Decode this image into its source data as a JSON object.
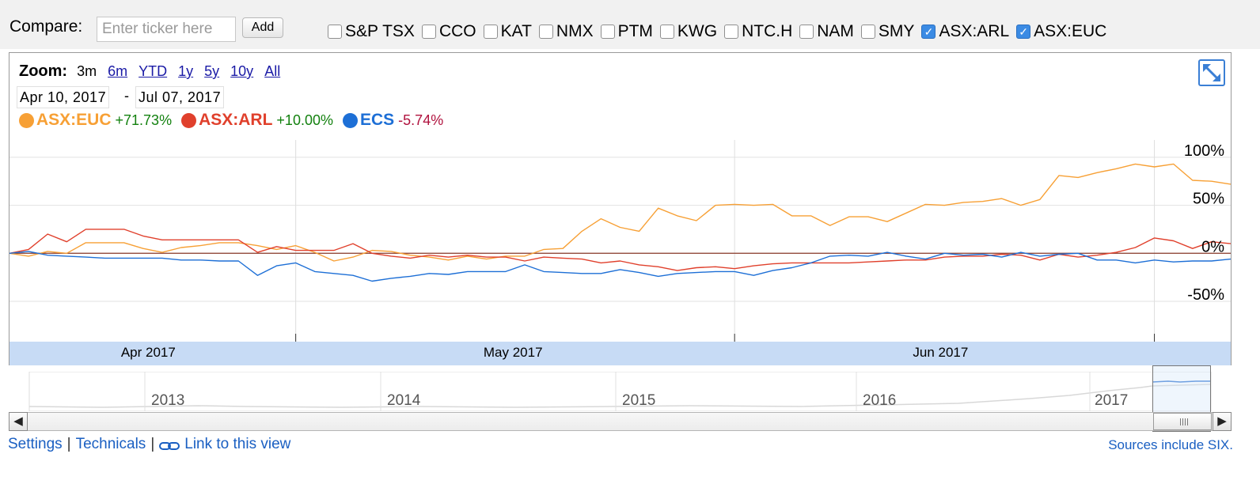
{
  "compare": {
    "label": "Compare:",
    "placeholder": "Enter ticker here",
    "add_label": "Add",
    "items": [
      {
        "label": "S&P TSX",
        "checked": false
      },
      {
        "label": "CCO",
        "checked": false
      },
      {
        "label": "KAT",
        "checked": false
      },
      {
        "label": "NMX",
        "checked": false
      },
      {
        "label": "PTM",
        "checked": false
      },
      {
        "label": "KWG",
        "checked": false
      },
      {
        "label": "NTC.H",
        "checked": false
      },
      {
        "label": "NAM",
        "checked": false
      },
      {
        "label": "SMY",
        "checked": false
      },
      {
        "label": "ASX:ARL",
        "checked": true
      },
      {
        "label": "ASX:EUC",
        "checked": true
      }
    ]
  },
  "zoom": {
    "label": "Zoom:",
    "options": [
      "3m",
      "6m",
      "YTD",
      "1y",
      "5y",
      "10y",
      "All"
    ],
    "active": "3m"
  },
  "date_range": {
    "start": "Apr 10, 2017",
    "separator": "-",
    "end": "Jul 07, 2017"
  },
  "legend": [
    {
      "name": "ASX:EUC",
      "change": "+71.73%",
      "color": "#f7a035",
      "change_color": "#13810f"
    },
    {
      "name": "ASX:ARL",
      "change": "+10.00%",
      "color": "#e0402c",
      "change_color": "#13810f"
    },
    {
      "name": "ECS",
      "change": "-5.74%",
      "color": "#1d6fd6",
      "change_color": "#b0123e"
    }
  ],
  "chart_data": {
    "type": "line",
    "x": [
      "2017-04-10",
      "2017-04-11",
      "2017-04-12",
      "2017-04-13",
      "2017-04-14",
      "2017-04-17",
      "2017-04-18",
      "2017-04-19",
      "2017-04-20",
      "2017-04-21",
      "2017-04-24",
      "2017-04-25",
      "2017-04-26",
      "2017-04-27",
      "2017-04-28",
      "2017-05-01",
      "2017-05-02",
      "2017-05-03",
      "2017-05-04",
      "2017-05-05",
      "2017-05-08",
      "2017-05-09",
      "2017-05-10",
      "2017-05-11",
      "2017-05-12",
      "2017-05-15",
      "2017-05-16",
      "2017-05-17",
      "2017-05-18",
      "2017-05-19",
      "2017-05-22",
      "2017-05-23",
      "2017-05-24",
      "2017-05-25",
      "2017-05-26",
      "2017-05-29",
      "2017-05-30",
      "2017-05-31",
      "2017-06-01",
      "2017-06-02",
      "2017-06-05",
      "2017-06-06",
      "2017-06-07",
      "2017-06-08",
      "2017-06-09",
      "2017-06-12",
      "2017-06-13",
      "2017-06-14",
      "2017-06-15",
      "2017-06-16",
      "2017-06-19",
      "2017-06-20",
      "2017-06-21",
      "2017-06-22",
      "2017-06-23",
      "2017-06-26",
      "2017-06-27",
      "2017-06-28",
      "2017-06-29",
      "2017-06-30",
      "2017-07-03",
      "2017-07-04",
      "2017-07-05",
      "2017-07-06",
      "2017-07-07"
    ],
    "series": [
      {
        "name": "ASX:EUC",
        "color": "#f7a035",
        "values": [
          0,
          -3,
          2,
          0,
          11,
          11,
          11,
          5,
          1,
          6,
          8,
          11,
          11,
          8,
          4,
          8,
          1,
          -8,
          -4,
          3,
          2,
          -2,
          -4,
          -7,
          -3,
          -6,
          -3,
          -3,
          4,
          5,
          23,
          36,
          27,
          23,
          47,
          39,
          34,
          50,
          51,
          50,
          51,
          39,
          39,
          29,
          38,
          38,
          33,
          42,
          51,
          50,
          53,
          54,
          57,
          50,
          56,
          81,
          79,
          84,
          88,
          93,
          90,
          93,
          76,
          75,
          72
        ]
      },
      {
        "name": "ASX:ARL",
        "color": "#e0402c",
        "values": [
          0,
          4,
          20,
          12,
          25,
          25,
          25,
          18,
          14,
          14,
          14,
          14,
          14,
          1,
          7,
          3,
          3,
          3,
          10,
          0,
          -3,
          -5,
          -2,
          -4,
          -2,
          -4,
          -4,
          -8,
          -4,
          -5,
          -6,
          -10,
          -8,
          -12,
          -14,
          -18,
          -15,
          -14,
          -16,
          -13,
          -11,
          -10,
          -10,
          -10,
          -10,
          -9,
          -8,
          -7,
          -7,
          -4,
          -3,
          -3,
          -1,
          -2,
          -7,
          -1,
          -4,
          -2,
          1,
          6,
          16,
          13,
          5,
          12,
          10
        ]
      },
      {
        "name": "ECS",
        "color": "#1d6fd6",
        "values": [
          0,
          2,
          -2,
          -3,
          -4,
          -5,
          -5,
          -5,
          -5,
          -7,
          -7,
          -8,
          -8,
          -23,
          -13,
          -10,
          -19,
          -21,
          -23,
          -29,
          -26,
          -24,
          -21,
          -22,
          -19,
          -19,
          -19,
          -12,
          -19,
          -20,
          -21,
          -21,
          -17,
          -20,
          -24,
          -21,
          -20,
          -19,
          -19,
          -23,
          -18,
          -15,
          -10,
          -3,
          -2,
          -3,
          1,
          -3,
          -6,
          0,
          -2,
          -1,
          -4,
          1,
          -3,
          -1,
          0,
          -7,
          -7,
          -10,
          -7,
          -9,
          -8,
          -8,
          -6
        ]
      }
    ],
    "y_ticks": [
      "100%",
      "50%",
      "0%",
      "-50%"
    ],
    "y_tick_values": [
      100,
      50,
      0,
      -50
    ],
    "ylim": [
      -92,
      118
    ],
    "x_ticks": [
      {
        "label": "Apr 2017",
        "date": "2017-04-10"
      },
      {
        "label": "May 2017",
        "date": "2017-05-01"
      },
      {
        "label": "Jun 2017",
        "date": "2017-06-01"
      },
      {
        "label": "",
        "date": "2017-07-03"
      }
    ],
    "baseline": 0,
    "grid": true
  },
  "navigator": {
    "years": [
      "2013",
      "2014",
      "2015",
      "2016",
      "2017"
    ]
  },
  "footer": {
    "settings": "Settings",
    "technicals": "Technicals",
    "link": "Link to this view",
    "separator": "|",
    "sources": "Sources include SIX."
  }
}
